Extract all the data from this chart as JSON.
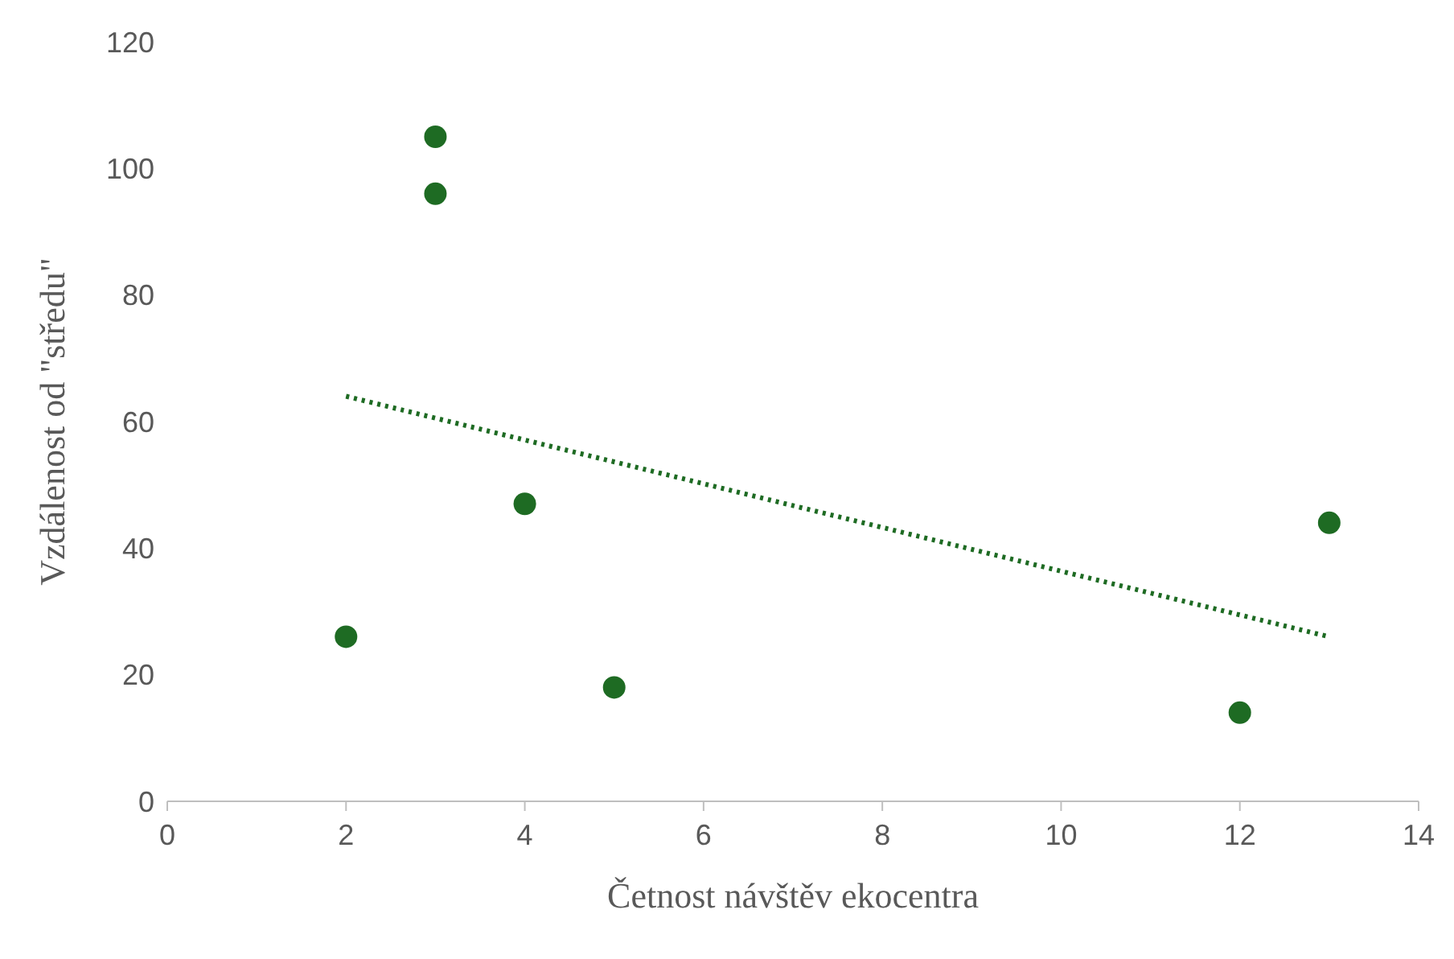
{
  "chart_data": {
    "type": "scatter",
    "xlabel": "Četnost návštěv ekocentra",
    "ylabel": "Vzdálenost od \"středu\"",
    "xlim": [
      0,
      14
    ],
    "xticks": [
      0,
      2,
      4,
      6,
      8,
      10,
      12,
      14
    ],
    "ylim": [
      0,
      120
    ],
    "yticks": [
      0,
      20,
      40,
      60,
      80,
      100,
      120
    ],
    "grid": false,
    "legend": false,
    "marker": "circle",
    "series": [
      {
        "color": "#1e6b23",
        "x": [
          2,
          3,
          3,
          4,
          5,
          12,
          13
        ],
        "values": [
          26,
          105,
          96,
          47,
          18,
          14,
          44
        ]
      },
      {
        "type": "line",
        "color": "#1e6b23",
        "x": [
          2,
          13
        ],
        "values": [
          64,
          26
        ],
        "marker": "none",
        "line_style": "dotted"
      }
    ]
  }
}
